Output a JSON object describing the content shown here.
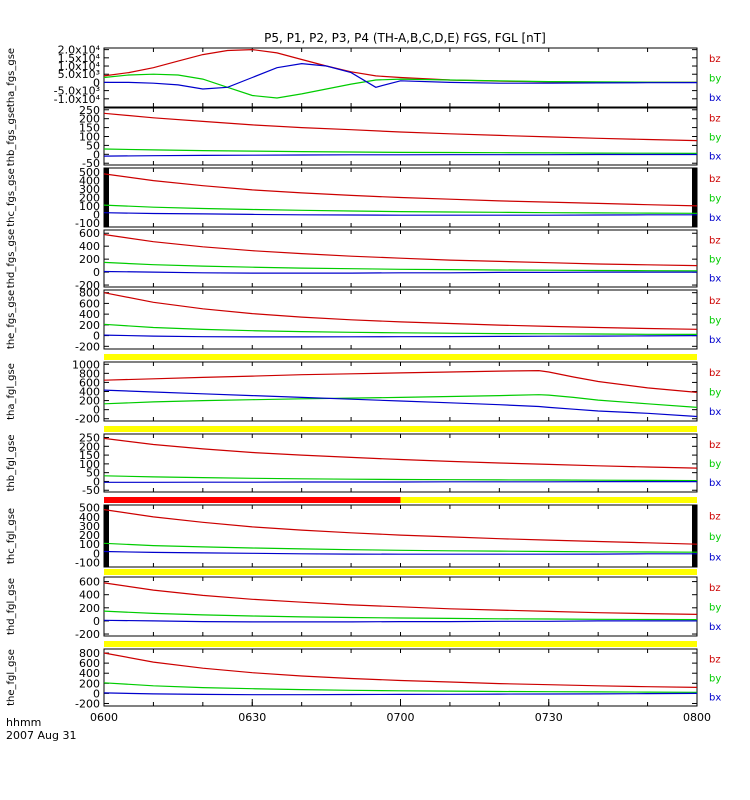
{
  "title": "P5, P1, P2, P3, P4 (TH-A,B,C,D,E) FGS, FGL [nT]",
  "time_axis": {
    "label_line1": "hhmm",
    "label_line2": "2007 Aug 31",
    "ticks": [
      "0600",
      "0630",
      "0700",
      "0730",
      "0800"
    ],
    "tick_minutes": [
      0,
      30,
      60,
      90,
      120
    ]
  },
  "colors": {
    "bx": "#0000cc",
    "by": "#00cc00",
    "bz": "#cc0000",
    "status_yellow": "#ffff00",
    "status_red": "#ff0000",
    "status_black": "#000000"
  },
  "chart_data": [
    {
      "type": "line",
      "ylabel": "tha_fgs_gse",
      "ylim": [
        -15000,
        21000
      ],
      "ymin_label_scale": "exp",
      "yticks": [
        -10000,
        -5000,
        0,
        5000,
        10000,
        15000,
        20000
      ],
      "ytick_labels": [
        "-1.0x10⁴",
        "-5.0x10³",
        "0",
        "5.0x10³",
        "1.0x10⁴",
        "1.5x10⁴",
        "2.0x10⁴"
      ],
      "x_minutes": [
        0,
        5,
        10,
        15,
        20,
        25,
        30,
        35,
        40,
        45,
        50,
        55,
        60,
        70,
        80,
        90,
        100,
        110,
        120
      ],
      "series": [
        {
          "name": "bz",
          "values": [
            4000,
            6000,
            9000,
            13000,
            17000,
            19500,
            20000,
            18000,
            14000,
            10000,
            6500,
            4000,
            3000,
            1500,
            800,
            400,
            200,
            100,
            50
          ]
        },
        {
          "name": "by",
          "values": [
            3000,
            4500,
            5000,
            4500,
            2000,
            -3000,
            -8000,
            -9500,
            -7000,
            -4000,
            -1000,
            1500,
            2000,
            1500,
            900,
            500,
            300,
            150,
            80
          ]
        },
        {
          "name": "bx",
          "values": [
            0,
            0,
            -500,
            -1500,
            -4000,
            -3000,
            3000,
            9000,
            11500,
            10000,
            6000,
            -3000,
            1000,
            0,
            -500,
            -400,
            -300,
            -200,
            -100
          ]
        }
      ]
    },
    {
      "type": "line",
      "ylabel": "thb_fgs_gse",
      "ylim": [
        -60,
        260
      ],
      "yticks": [
        -50,
        0,
        50,
        100,
        150,
        200,
        250
      ],
      "ytick_labels": [
        "-50",
        "0",
        "50",
        "100",
        "150",
        "200",
        "250"
      ],
      "x_minutes": [
        0,
        10,
        20,
        30,
        40,
        50,
        60,
        70,
        80,
        90,
        100,
        110,
        120
      ],
      "series": [
        {
          "name": "bz",
          "values": [
            230,
            205,
            185,
            165,
            150,
            138,
            125,
            115,
            106,
            98,
            90,
            83,
            77
          ]
        },
        {
          "name": "by",
          "values": [
            30,
            25,
            21,
            18,
            15,
            13,
            11,
            10,
            9,
            8,
            7,
            6,
            5
          ]
        },
        {
          "name": "bx",
          "values": [
            -10,
            -8,
            -6,
            -5,
            -4,
            -3,
            -3,
            -2,
            -2,
            -2,
            -1,
            -1,
            -1
          ]
        }
      ]
    },
    {
      "type": "line",
      "ylabel": "thc_fgs_gse",
      "ylim": [
        -150,
        550
      ],
      "yticks": [
        -100,
        0,
        100,
        200,
        300,
        400,
        500
      ],
      "ytick_labels": [
        "-100",
        "0",
        "100",
        "200",
        "300",
        "400",
        "500"
      ],
      "x_minutes": [
        0,
        10,
        20,
        30,
        40,
        50,
        60,
        70,
        80,
        90,
        100,
        110,
        120
      ],
      "series": [
        {
          "name": "bz",
          "values": [
            480,
            400,
            340,
            290,
            255,
            225,
            200,
            180,
            160,
            145,
            130,
            115,
            100
          ]
        },
        {
          "name": "by",
          "values": [
            110,
            85,
            70,
            58,
            48,
            40,
            33,
            28,
            24,
            20,
            17,
            15,
            12
          ]
        },
        {
          "name": "bx",
          "values": [
            20,
            10,
            5,
            0,
            -5,
            -8,
            -10,
            -10,
            -10,
            -10,
            -8,
            -5,
            -5
          ]
        }
      ],
      "edge_bars": true
    },
    {
      "type": "line",
      "ylabel": "thd_fgs_gse",
      "ylim": [
        -230,
        650
      ],
      "yticks": [
        -200,
        0,
        200,
        400,
        600
      ],
      "ytick_labels": [
        "-200",
        "0",
        "200",
        "400",
        "600"
      ],
      "x_minutes": [
        0,
        10,
        20,
        30,
        40,
        50,
        60,
        70,
        80,
        90,
        100,
        110,
        120
      ],
      "series": [
        {
          "name": "bz",
          "values": [
            580,
            470,
            390,
            330,
            285,
            245,
            215,
            185,
            165,
            145,
            125,
            112,
            100
          ]
        },
        {
          "name": "by",
          "values": [
            150,
            115,
            92,
            75,
            62,
            52,
            44,
            38,
            33,
            29,
            25,
            22,
            20
          ]
        },
        {
          "name": "bx",
          "values": [
            10,
            0,
            -10,
            -15,
            -15,
            -15,
            -10,
            -10,
            -5,
            -5,
            0,
            0,
            0
          ]
        }
      ]
    },
    {
      "type": "line",
      "ylabel": "the_fgs_gse",
      "ylim": [
        -250,
        850
      ],
      "yticks": [
        -200,
        0,
        200,
        400,
        600,
        800
      ],
      "ytick_labels": [
        "-200",
        "0",
        "200",
        "400",
        "600",
        "800"
      ],
      "x_minutes": [
        0,
        10,
        20,
        30,
        40,
        50,
        60,
        70,
        80,
        90,
        100,
        110,
        120
      ],
      "series": [
        {
          "name": "bz",
          "values": [
            800,
            620,
            500,
            410,
            345,
            295,
            255,
            225,
            195,
            172,
            150,
            132,
            118
          ]
        },
        {
          "name": "by",
          "values": [
            210,
            150,
            115,
            92,
            75,
            62,
            52,
            45,
            38,
            33,
            29,
            25,
            22
          ]
        },
        {
          "name": "bx",
          "values": [
            10,
            -10,
            -20,
            -25,
            -25,
            -22,
            -20,
            -18,
            -15,
            -12,
            -10,
            -5,
            0
          ]
        }
      ]
    },
    {
      "type": "line",
      "ylabel": "tha_fgl_gse",
      "ylim": [
        -250,
        1050
      ],
      "yticks": [
        -200,
        0,
        200,
        400,
        600,
        800,
        1000
      ],
      "ytick_labels": [
        "-200",
        "0",
        "200",
        "400",
        "600",
        "800",
        "1000"
      ],
      "x_minutes": [
        0,
        10,
        20,
        30,
        40,
        50,
        60,
        70,
        80,
        88,
        90,
        95,
        100,
        110,
        120
      ],
      "series": [
        {
          "name": "bz",
          "values": [
            650,
            680,
            710,
            740,
            770,
            790,
            810,
            830,
            850,
            860,
            830,
            720,
            620,
            480,
            380
          ]
        },
        {
          "name": "by",
          "values": [
            130,
            170,
            200,
            220,
            240,
            255,
            270,
            290,
            310,
            330,
            320,
            270,
            210,
            130,
            50
          ]
        },
        {
          "name": "bx",
          "values": [
            430,
            390,
            350,
            310,
            270,
            230,
            190,
            150,
            110,
            70,
            50,
            10,
            -30,
            -80,
            -150
          ]
        }
      ],
      "status_bar": "yellow"
    },
    {
      "type": "line",
      "ylabel": "thb_fgl_gse",
      "ylim": [
        -60,
        270
      ],
      "yticks": [
        -50,
        0,
        50,
        100,
        150,
        200,
        250
      ],
      "ytick_labels": [
        "-50",
        "0",
        "50",
        "100",
        "150",
        "200",
        "250"
      ],
      "x_minutes": [
        0,
        10,
        20,
        30,
        40,
        50,
        60,
        70,
        80,
        90,
        100,
        110,
        120
      ],
      "series": [
        {
          "name": "bz",
          "values": [
            245,
            210,
            185,
            165,
            150,
            137,
            125,
            114,
            105,
            97,
            89,
            82,
            76
          ]
        },
        {
          "name": "by",
          "values": [
            32,
            26,
            22,
            18,
            15,
            13,
            11,
            10,
            9,
            8,
            7,
            6,
            5
          ]
        },
        {
          "name": "bx",
          "values": [
            -5,
            -5,
            -4,
            -4,
            -3,
            -3,
            -3,
            -2,
            -2,
            -2,
            -1,
            -1,
            -1
          ]
        }
      ],
      "status_bar": "yellow"
    },
    {
      "type": "line",
      "ylabel": "thc_fgl_gse",
      "ylim": [
        -150,
        530
      ],
      "yticks": [
        -100,
        0,
        100,
        200,
        300,
        400,
        500
      ],
      "ytick_labels": [
        "-100",
        "0",
        "100",
        "200",
        "300",
        "400",
        "500"
      ],
      "x_minutes": [
        0,
        10,
        20,
        30,
        40,
        50,
        60,
        70,
        80,
        90,
        100,
        110,
        120
      ],
      "series": [
        {
          "name": "bz",
          "values": [
            480,
            400,
            340,
            290,
            255,
            225,
            200,
            180,
            160,
            145,
            130,
            115,
            100
          ]
        },
        {
          "name": "by",
          "values": [
            110,
            85,
            70,
            58,
            48,
            40,
            33,
            28,
            24,
            20,
            17,
            15,
            12
          ]
        },
        {
          "name": "bx",
          "values": [
            20,
            10,
            5,
            0,
            -5,
            -8,
            -10,
            -10,
            -10,
            -10,
            -8,
            -5,
            -5
          ]
        }
      ],
      "status_bar": "red-yellow",
      "edge_bars": true
    },
    {
      "type": "line",
      "ylabel": "thd_fgl_gse",
      "ylim": [
        -230,
        670
      ],
      "yticks": [
        -200,
        0,
        200,
        400,
        600
      ],
      "ytick_labels": [
        "-200",
        "0",
        "200",
        "400",
        "600"
      ],
      "x_minutes": [
        0,
        10,
        20,
        30,
        40,
        50,
        60,
        70,
        80,
        90,
        100,
        110,
        120
      ],
      "series": [
        {
          "name": "bz",
          "values": [
            580,
            470,
            390,
            330,
            285,
            245,
            215,
            185,
            165,
            145,
            125,
            112,
            100
          ]
        },
        {
          "name": "by",
          "values": [
            150,
            115,
            92,
            75,
            62,
            52,
            44,
            38,
            33,
            29,
            25,
            22,
            20
          ]
        },
        {
          "name": "bx",
          "values": [
            10,
            0,
            -10,
            -15,
            -15,
            -15,
            -10,
            -10,
            -5,
            -5,
            0,
            0,
            0
          ]
        }
      ],
      "status_bar": "yellow"
    },
    {
      "type": "line",
      "ylabel": "the_fgl_gse",
      "ylim": [
        -250,
        880
      ],
      "yticks": [
        -200,
        0,
        200,
        400,
        600,
        800
      ],
      "ytick_labels": [
        "-200",
        "0",
        "200",
        "400",
        "600",
        "800"
      ],
      "x_minutes": [
        0,
        10,
        20,
        30,
        40,
        50,
        60,
        70,
        80,
        90,
        100,
        110,
        120
      ],
      "series": [
        {
          "name": "bz",
          "values": [
            800,
            620,
            500,
            410,
            345,
            295,
            255,
            225,
            195,
            172,
            150,
            132,
            118
          ]
        },
        {
          "name": "by",
          "values": [
            210,
            150,
            115,
            92,
            75,
            62,
            52,
            45,
            38,
            33,
            29,
            25,
            22
          ]
        },
        {
          "name": "bx",
          "values": [
            10,
            -10,
            -20,
            -25,
            -25,
            -22,
            -20,
            -18,
            -15,
            -12,
            -10,
            -5,
            0
          ]
        }
      ],
      "status_bar": "yellow"
    }
  ]
}
